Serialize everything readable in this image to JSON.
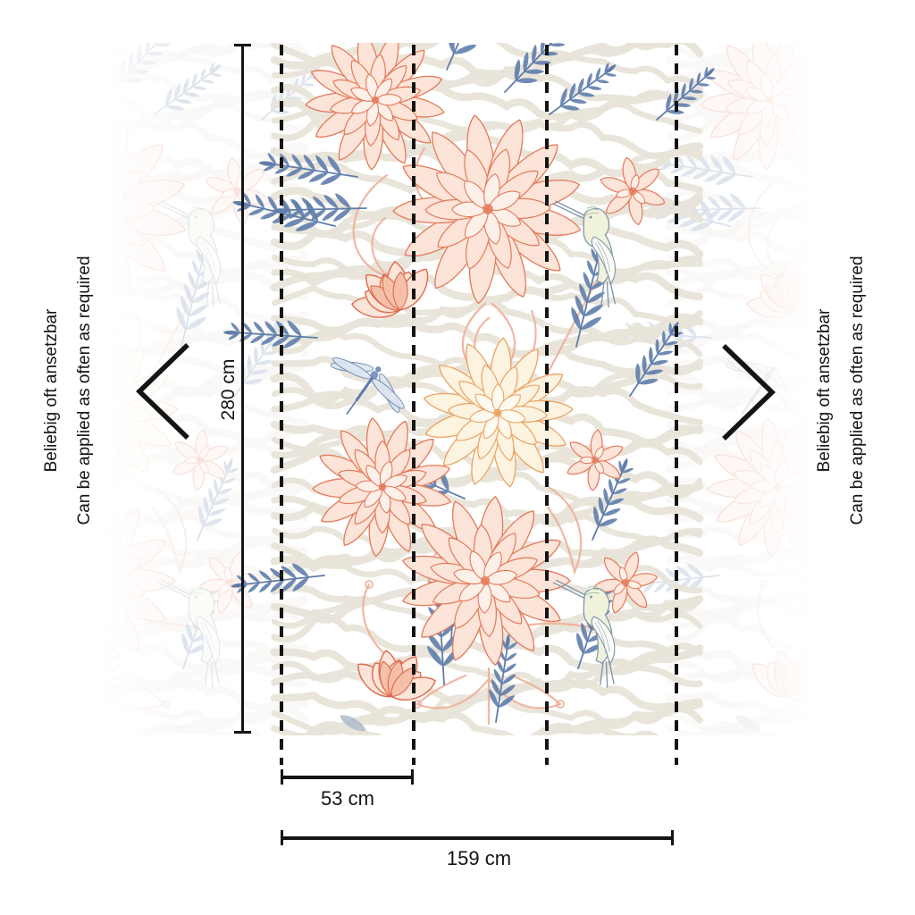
{
  "captions": {
    "left": {
      "line1": "Beliebig oft ansetzbar",
      "line2": "Can be applied as often as required"
    },
    "right": {
      "line1": "Beliebig oft ansetzbar",
      "line2": "Can be applied as often as required"
    }
  },
  "dimensions": {
    "height_label": "280 cm",
    "panel_width_label": "53 cm",
    "total_width_label": "159 cm"
  },
  "icons": {
    "left_repeat": "chevron-left-icon",
    "right_repeat": "chevron-right-icon"
  },
  "colors": {
    "background": "#ffffff",
    "measure_line": "#141414",
    "zebra_stripe": "#e8e4d9",
    "coral": "#e4795a",
    "coral_light": "#f0ae97",
    "coral_deep": "#dc6a4b",
    "coral_fill": "#fce4d8",
    "coral_fill_inner": "#fdf0e9",
    "orange": "#eba261",
    "orange_fill": "#fdf3e1",
    "orange_fill_inner": "#fefaf0",
    "blue": "#5f7dab",
    "dragonfly_wing": "#dce5f0",
    "bird_stroke": "#7e95aa",
    "bird_fill": "#f1f2dc",
    "bird_wing_fill": "#fbfcf6",
    "bird_hatch": "#a9c4b1",
    "grey_leaf": "#a8b8c9"
  }
}
